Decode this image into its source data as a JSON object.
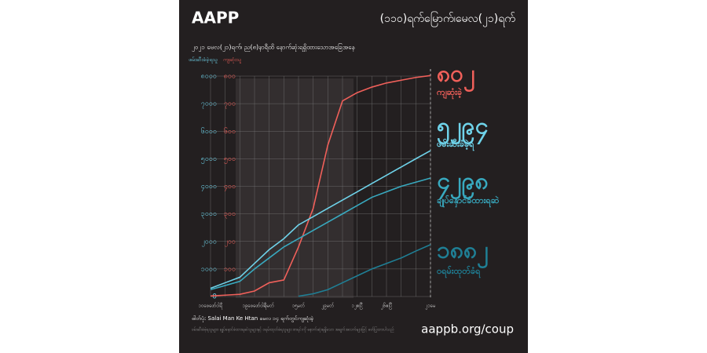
{
  "chart_data": {
    "type": "line",
    "title": "AAPP",
    "subtitle": "(၁၁၀)ရက်မြောက်၊မေလ(၂၁)ရက်",
    "note": "၂၀၂၁ မေလ(၂၁)ရက်၊ ည(၈)နာရီထိ နောက်ဆုံးရရှိထားသောအခြေအနေ",
    "ylabel": "ဖမ်းဆီးခံခဲ့ရသူ",
    "y2label": "ကျဆုံးသူ",
    "categories": [
      "၁၀ဖေဖော်ဝါရီ",
      null,
      null,
      "၁၉ဖေဖော်ဝါရီ",
      "၁မတ်",
      null,
      "၁၅မတ်",
      null,
      "၂၉မတ်",
      null,
      "၁၂ဧပြီ",
      null,
      "၂၆ဧပြီ",
      null,
      null,
      "၂၁မေ"
    ],
    "series": [
      {
        "name": "ကျဆုံးခဲ့",
        "color": "#f0605a",
        "axis": "y2",
        "end_label": "၈၀၂",
        "values": [
          2,
          5,
          8,
          20,
          50,
          60,
          180,
          320,
          550,
          710,
          740,
          760,
          775,
          785,
          795,
          802
        ]
      },
      {
        "name": "ဖမ်းဆီးခံခဲ့ရ",
        "color": "#6fd3ea",
        "end_label": "၅၂၉၄",
        "values": [
          300,
          500,
          700,
          1200,
          1700,
          2100,
          2600,
          2900,
          3200,
          3500,
          3800,
          4100,
          4400,
          4700,
          5000,
          5294
        ]
      },
      {
        "name": "ချုပ်နှောင်ခံထားရဆဲ",
        "color": "#38a9bf",
        "end_label": "၄၂၉၈",
        "values": [
          250,
          400,
          550,
          1000,
          1400,
          1800,
          2100,
          2400,
          2700,
          3000,
          3300,
          3600,
          3800,
          4000,
          4150,
          4298
        ]
      },
      {
        "name": "ဝရမ်းထုတ်ခံရ",
        "color": "#1f7f95",
        "end_label": "၁၈၈၂",
        "values": [
          null,
          null,
          null,
          null,
          null,
          null,
          10,
          100,
          250,
          500,
          750,
          1000,
          1200,
          1400,
          1650,
          1882
        ]
      }
    ],
    "ylim": [
      0,
      8000
    ],
    "yticks": [
      0,
      {
        "value": 1000,
        "label": "၁၀၀၀"
      },
      {
        "value": 2000,
        "label": "၂၀၀၀"
      },
      {
        "value": 3000,
        "label": "၃၀၀၀"
      },
      {
        "value": 4000,
        "label": "၄၀၀၀"
      },
      {
        "value": 5000,
        "label": "၅၀၀၀"
      },
      {
        "value": 6000,
        "label": "၆၀၀၀"
      },
      {
        "value": 7000,
        "label": "၇၀၀၀"
      },
      {
        "value": 8000,
        "label": "၈၀၀၀"
      }
    ],
    "y2lim": [
      0,
      800
    ],
    "y2ticks": [
      {
        "value": 100,
        "label": "၁၀၀"
      },
      {
        "value": 200,
        "label": "၂၀၀"
      },
      {
        "value": 300,
        "label": "၃၀၀"
      },
      {
        "value": 400,
        "label": "၄၀၀"
      },
      {
        "value": 500,
        "label": "၅၀၀"
      },
      {
        "value": 600,
        "label": "၆၀၀"
      },
      {
        "value": 700,
        "label": "၇၀၀"
      },
      {
        "value": 800,
        "label": "၈၀၀"
      }
    ],
    "grid": true,
    "credit": "ဓါတ်ပုံ: Salai Man Ke Htan မေလ ၁၄ ရက်တွင်ကျဆုံးခဲ့",
    "footnote": "ဖမ်းဆီးခံခဲ့ရသူများ၊ ချုပ်နှောင်ခံထားရဆဲသူများနှင့် ဝရမ်းထုတ်ခံရသူများ စာရင်းကို နောက်ဆုံးရရှိသော အချက်အလက်များဖြင့် ဖော်ပြထားပါသည်",
    "url": "aappb.org/coup"
  }
}
